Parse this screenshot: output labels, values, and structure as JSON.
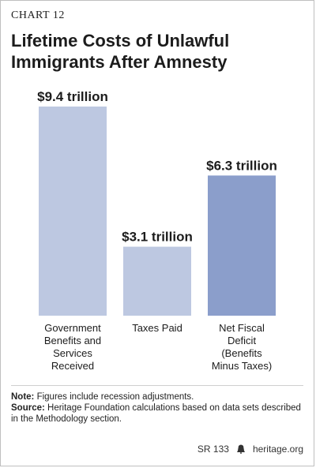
{
  "header": {
    "chart_number": "CHART 12",
    "title": "Lifetime Costs of Unlawful Immigrants After Amnesty"
  },
  "chart_data": {
    "type": "bar",
    "categories": [
      "Government\nBenefits and\nServices\nReceived",
      "Taxes Paid",
      "Net Fiscal\nDeficit\n(Benefits\nMinus Taxes)"
    ],
    "values": [
      9.4,
      3.1,
      6.3
    ],
    "value_labels": [
      "$9.4 trillion",
      "$3.1 trillion",
      "$6.3 trillion"
    ],
    "colors": [
      "#bdc8e1",
      "#bdc8e1",
      "#8b9ecb"
    ],
    "title": "Lifetime Costs of Unlawful Immigrants After Amnesty",
    "ylim": [
      0,
      9.4
    ],
    "grid": false,
    "legend": "none"
  },
  "notes": {
    "note_label": "Note:",
    "note_text": " Figures include recession adjustments.",
    "source_label": "Source:",
    "source_text": " Heritage Foundation calculations based on data sets described in the Methodology section."
  },
  "footer": {
    "report_id": "SR 133",
    "site": "heritage.org",
    "logo_icon": "liberty-bell-icon"
  }
}
